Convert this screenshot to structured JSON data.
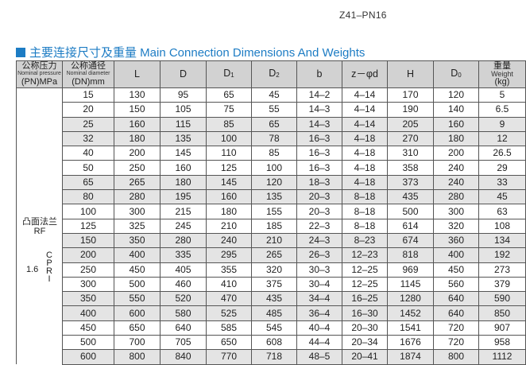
{
  "model": "Z41-PN16",
  "section_title": "主要连接尺寸及重量 Main Connection Dimensions And Weights",
  "accent_color": "#1d7cc4",
  "header": {
    "pn": {
      "cn": "公称压力",
      "en": "Nominal pressure",
      "unit": "(PN)MPa"
    },
    "dn": {
      "cn": "公称通径",
      "en": "Nominal diameter",
      "unit": "(DN)mm"
    },
    "L": "L",
    "D": "D",
    "D1": "D",
    "D1_sub": "1",
    "D2": "D",
    "D2_sub": "2",
    "b": "b",
    "zd": "z－φd",
    "H": "H",
    "D0": "D",
    "D0_sub": "0",
    "weight": {
      "cn": "重量",
      "en": "Weight",
      "unit": "(kg)"
    }
  },
  "left_cell": {
    "face": "凸面法兰",
    "face_en": "RF",
    "pressure": "1.6",
    "vertical": [
      "C",
      "P",
      "R",
      "I"
    ]
  },
  "rows": [
    [
      "15",
      "130",
      "95",
      "65",
      "45",
      "14-2",
      "4-14",
      "170",
      "120",
      "5"
    ],
    [
      "20",
      "150",
      "105",
      "75",
      "55",
      "14-3",
      "4-14",
      "190",
      "140",
      "6.5"
    ],
    [
      "25",
      "160",
      "115",
      "85",
      "65",
      "14-3",
      "4-14",
      "205",
      "160",
      "9"
    ],
    [
      "32",
      "180",
      "135",
      "100",
      "78",
      "16-3",
      "4-18",
      "270",
      "180",
      "12"
    ],
    [
      "40",
      "200",
      "145",
      "110",
      "85",
      "16-3",
      "4-18",
      "310",
      "200",
      "26.5"
    ],
    [
      "50",
      "250",
      "160",
      "125",
      "100",
      "16-3",
      "4-18",
      "358",
      "240",
      "29"
    ],
    [
      "65",
      "265",
      "180",
      "145",
      "120",
      "18-3",
      "4-18",
      "373",
      "240",
      "33"
    ],
    [
      "80",
      "280",
      "195",
      "160",
      "135",
      "20-3",
      "8-18",
      "435",
      "280",
      "45"
    ],
    [
      "100",
      "300",
      "215",
      "180",
      "155",
      "20-3",
      "8-18",
      "500",
      "300",
      "63"
    ],
    [
      "125",
      "325",
      "245",
      "210",
      "185",
      "22-3",
      "8-18",
      "614",
      "320",
      "108"
    ],
    [
      "150",
      "350",
      "280",
      "240",
      "210",
      "24-3",
      "8-23",
      "674",
      "360",
      "134"
    ],
    [
      "200",
      "400",
      "335",
      "295",
      "265",
      "26-3",
      "12-23",
      "818",
      "400",
      "192"
    ],
    [
      "250",
      "450",
      "405",
      "355",
      "320",
      "30-3",
      "12-25",
      "969",
      "450",
      "273"
    ],
    [
      "300",
      "500",
      "460",
      "410",
      "375",
      "30-4",
      "12-25",
      "1145",
      "560",
      "379"
    ],
    [
      "350",
      "550",
      "520",
      "470",
      "435",
      "34-4",
      "16-25",
      "1280",
      "640",
      "590"
    ],
    [
      "400",
      "600",
      "580",
      "525",
      "485",
      "36-4",
      "16-30",
      "1452",
      "640",
      "850"
    ],
    [
      "450",
      "650",
      "640",
      "585",
      "545",
      "40-4",
      "20-30",
      "1541",
      "720",
      "907"
    ],
    [
      "500",
      "700",
      "705",
      "650",
      "608",
      "44-4",
      "20-34",
      "1676",
      "720",
      "958"
    ],
    [
      "600",
      "800",
      "840",
      "770",
      "718",
      "48-5",
      "20-41",
      "1874",
      "800",
      "1112"
    ]
  ],
  "shaded_rows": [
    2,
    3,
    6,
    7,
    10,
    11,
    14,
    15,
    18
  ]
}
